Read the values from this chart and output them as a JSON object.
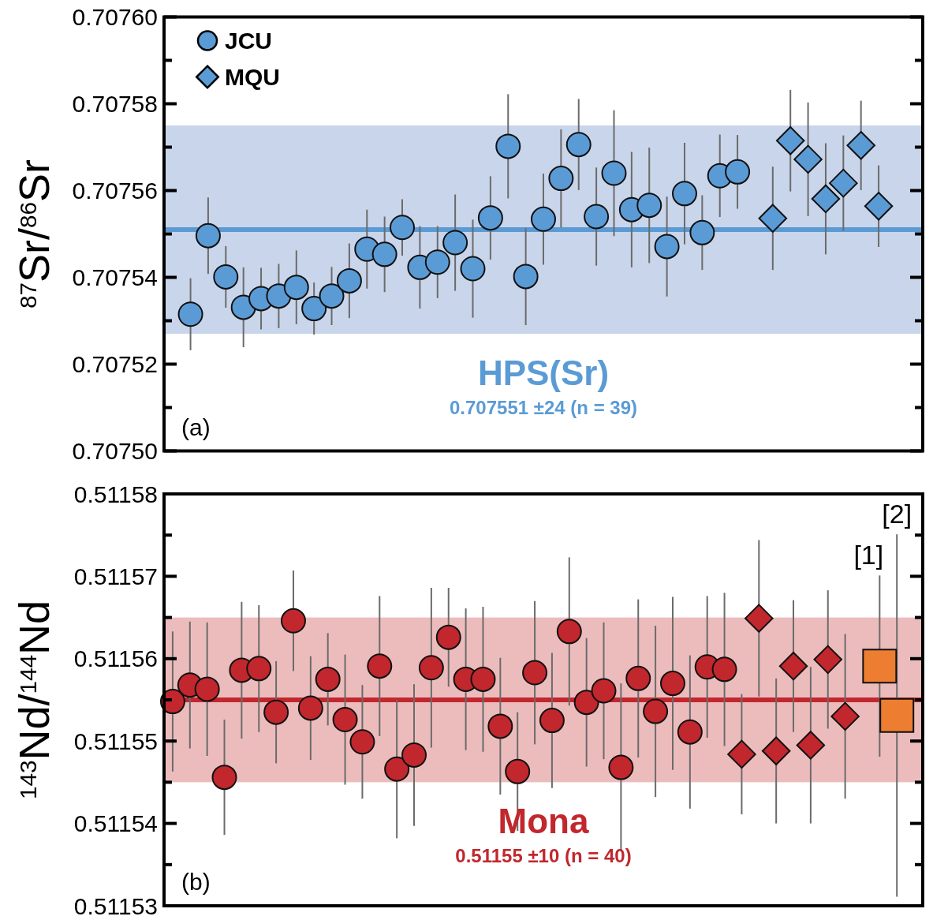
{
  "chart_data": [
    {
      "type": "scatter",
      "ylabel": "$^{87}$Sr/$^{86}$Sr",
      "legend": "top left",
      "categories": [
        null,
        null,
        null,
        null,
        null,
        null,
        null,
        null,
        null,
        null,
        null,
        null,
        null,
        null,
        null,
        null,
        null,
        null,
        null,
        null,
        null,
        null,
        null,
        null,
        null,
        null,
        null,
        null,
        null,
        null,
        null,
        null,
        null,
        null,
        null,
        null,
        null,
        null,
        null,
        null,
        null,
        null,
        null
      ],
      "ylim": [
        0.7075,
        0.7076
      ],
      "yticks": [
        {
          "value": 0.7075,
          "label": "0.70750"
        },
        {
          "value": 0.70751,
          "label": null
        },
        {
          "value": 0.70752,
          "label": "0.70752"
        },
        {
          "value": 0.70753,
          "label": null
        },
        {
          "value": 0.70754,
          "label": "0.70754"
        },
        {
          "value": 0.70755,
          "label": null
        },
        {
          "value": 0.70756,
          "label": "0.70756"
        },
        {
          "value": 0.70757,
          "label": null
        },
        {
          "value": 0.70758,
          "label": "0.70758"
        },
        {
          "value": 0.70759,
          "label": null
        },
        {
          "value": 0.7076,
          "label": "0.70760"
        }
      ],
      "series": [
        {
          "name": "JCU",
          "color": "#5b9bd5",
          "marker": "circle",
          "values": [
            null,
            0.7075315,
            0.7075496,
            0.7075401,
            0.7075331,
            0.7075351,
            0.7075357,
            0.7075377,
            0.7075328,
            0.7075357,
            0.7075392,
            0.7075465,
            0.7075453,
            0.7075515,
            0.7075423,
            0.7075435,
            0.707548,
            0.707542,
            0.7075537,
            0.7075702,
            0.7075402,
            0.7075534,
            0.7075628,
            0.7075706,
            0.707554,
            0.707564,
            0.7075556,
            0.7075566,
            0.7075471,
            0.7075593,
            0.7075503,
            0.7075634,
            0.7075643,
            null,
            null,
            null,
            null,
            null,
            null,
            null,
            null,
            null,
            null
          ],
          "errors": [
            null,
            8.3e-06,
            8.8e-06,
            7.1e-06,
            9.2e-06,
            7.1e-06,
            7.4e-06,
            8.5e-06,
            6e-06,
            6.7e-06,
            8.6e-06,
            9.1e-06,
            8.7e-06,
            6.5e-06,
            9.5e-06,
            8.3e-06,
            1.11e-05,
            1.13e-05,
            9.6e-06,
            1.2e-05,
            1.12e-05,
            1.05e-05,
            1.13e-05,
            1.05e-05,
            1.13e-05,
            1.45e-05,
            1.33e-05,
            1.33e-05,
            1.15e-05,
            1.17e-05,
            8.6e-06,
            9.5e-06,
            8.5e-06,
            null,
            null,
            null,
            null,
            null,
            null,
            null,
            null,
            null,
            null
          ]
        },
        {
          "name": "MQU",
          "color": "#5b9bd5",
          "marker": "diamond",
          "values": [
            null,
            null,
            null,
            null,
            null,
            null,
            null,
            null,
            null,
            null,
            null,
            null,
            null,
            null,
            null,
            null,
            null,
            null,
            null,
            null,
            null,
            null,
            null,
            null,
            null,
            null,
            null,
            null,
            null,
            null,
            null,
            null,
            null,
            null,
            0.7075536,
            0.7075715,
            0.7075672,
            0.7075581,
            0.7075617,
            0.7075704,
            0.7075564,
            null,
            null
          ],
          "errors": [
            null,
            null,
            null,
            null,
            null,
            null,
            null,
            null,
            null,
            null,
            null,
            null,
            null,
            null,
            null,
            null,
            null,
            null,
            null,
            null,
            null,
            null,
            null,
            null,
            null,
            null,
            null,
            null,
            null,
            null,
            null,
            null,
            null,
            null,
            1.19e-05,
            1.17e-05,
            1.31e-05,
            1.28e-05,
            1.1e-05,
            1.03e-05,
            9.4e-06,
            null,
            null
          ]
        }
      ],
      "ref_lines": [
        {
          "axis": "y",
          "value": 0.707551,
          "color": "#5b9bd5"
        }
      ],
      "bands": [
        {
          "axis": "y",
          "from": 0.707527,
          "to": 0.707575,
          "color": "#c9d5ea"
        }
      ],
      "annotations": [
        "HPS(Sr)",
        "0.707551 ±24 (n = 39)",
        "(a)"
      ]
    },
    {
      "type": "scatter",
      "ylabel": "$^{143}$Nd/$^{144}$Nd",
      "legend": false,
      "categories": [
        null,
        null,
        null,
        null,
        null,
        null,
        null,
        null,
        null,
        null,
        null,
        null,
        null,
        null,
        null,
        null,
        null,
        null,
        null,
        null,
        null,
        null,
        null,
        null,
        null,
        null,
        null,
        null,
        null,
        null,
        null,
        null,
        null,
        null,
        null,
        null,
        null,
        null,
        null,
        null,
        null,
        null,
        null,
        null
      ],
      "ylim": [
        0.51153,
        0.51158
      ],
      "yticks": [
        {
          "value": 0.51153,
          "label": "0.51153"
        },
        {
          "value": 0.511535,
          "label": null
        },
        {
          "value": 0.51154,
          "label": "0.51154"
        },
        {
          "value": 0.511545,
          "label": null
        },
        {
          "value": 0.51155,
          "label": "0.51155"
        },
        {
          "value": 0.511555,
          "label": null
        },
        {
          "value": 0.51156,
          "label": "0.51156"
        },
        {
          "value": 0.511565,
          "label": null
        },
        {
          "value": 0.51157,
          "label": "0.51157"
        },
        {
          "value": 0.511575,
          "label": null
        },
        {
          "value": 0.51158,
          "label": "0.51158"
        }
      ],
      "series": [
        {
          "color": "#c1272d",
          "marker": "circle",
          "values": [
            0.5115548,
            0.5115568,
            0.5115563,
            0.5115456,
            0.5115586,
            0.5115588,
            0.5115535,
            0.5115646,
            0.511554,
            0.5115575,
            0.5115526,
            0.5115499,
            0.5115591,
            0.5115466,
            0.5115483,
            0.5115589,
            0.5115626,
            0.5115575,
            0.5115575,
            0.5115518,
            0.5115463,
            0.5115583,
            0.5115525,
            0.5115633,
            0.5115547,
            0.5115561,
            0.5115468,
            0.5115576,
            0.5115536,
            0.511557,
            0.5115511,
            0.511559,
            0.5115587,
            null,
            null,
            null,
            null,
            null,
            null,
            null,
            null,
            null,
            null,
            null
          ],
          "errors": [
            8.5e-06,
            7.7e-06,
            8.1e-06,
            7e-06,
            8.3e-06,
            7.7e-06,
            6.2e-06,
            6.1e-06,
            6.3e-06,
            5.6e-06,
            7.9e-06,
            6.9e-06,
            8.5e-06,
            8.4e-06,
            8.6e-06,
            9.7e-06,
            6e-06,
            8.6e-06,
            8.8e-06,
            8.3e-06,
            7.2e-06,
            8.7e-06,
            8.2e-06,
            9e-06,
            7.8e-06,
            8.3e-06,
            1.02e-05,
            9.6e-06,
            1.04e-05,
            1.05e-05,
            9.3e-06,
            8.6e-06,
            9.3e-06,
            null,
            null,
            null,
            null,
            null,
            null,
            null,
            null,
            null,
            null,
            null
          ]
        },
        {
          "color": "#c1272d",
          "marker": "diamond",
          "values": [
            null,
            null,
            null,
            null,
            null,
            null,
            null,
            null,
            null,
            null,
            null,
            null,
            null,
            null,
            null,
            null,
            null,
            null,
            null,
            null,
            null,
            null,
            null,
            null,
            null,
            null,
            null,
            null,
            null,
            null,
            null,
            null,
            null,
            0.5115484,
            0.5115649,
            0.5115488,
            0.5115591,
            0.5115495,
            0.5115599,
            0.511553,
            null,
            null,
            null,
            null
          ],
          "errors": [
            null,
            null,
            null,
            null,
            null,
            null,
            null,
            null,
            null,
            null,
            null,
            null,
            null,
            null,
            null,
            null,
            null,
            null,
            null,
            null,
            null,
            null,
            null,
            null,
            null,
            null,
            null,
            null,
            null,
            null,
            null,
            null,
            null,
            7.3e-06,
            9.5e-06,
            8.8e-06,
            8e-06,
            9.5e-06,
            8.4e-06,
            1e-05,
            null,
            null,
            null,
            null
          ]
        },
        {
          "color": "#ed7d31",
          "marker": "square",
          "values": [
            null,
            null,
            null,
            null,
            null,
            null,
            null,
            null,
            null,
            null,
            null,
            null,
            null,
            null,
            null,
            null,
            null,
            null,
            null,
            null,
            null,
            null,
            null,
            null,
            null,
            null,
            null,
            null,
            null,
            null,
            null,
            null,
            null,
            null,
            null,
            null,
            null,
            null,
            null,
            null,
            null,
            0.5115591,
            0.5115531,
            null
          ],
          "errors": [
            null,
            null,
            null,
            null,
            null,
            null,
            null,
            null,
            null,
            null,
            null,
            null,
            null,
            null,
            null,
            null,
            null,
            null,
            null,
            null,
            null,
            null,
            null,
            null,
            null,
            null,
            null,
            null,
            null,
            null,
            null,
            null,
            null,
            null,
            null,
            null,
            null,
            null,
            null,
            null,
            null,
            1.1e-05,
            2.2e-05,
            null
          ]
        }
      ],
      "ref_lines": [
        {
          "axis": "y",
          "value": 0.511555,
          "color": "#c1272d"
        }
      ],
      "bands": [
        {
          "axis": "y",
          "from": 0.511545,
          "to": 0.511565,
          "color": "#ecbcbd"
        }
      ],
      "annotations": [
        "Mona",
        "0.51155 ±10 (n = 40)",
        "(b)",
        "[1]",
        "[2]"
      ]
    }
  ]
}
